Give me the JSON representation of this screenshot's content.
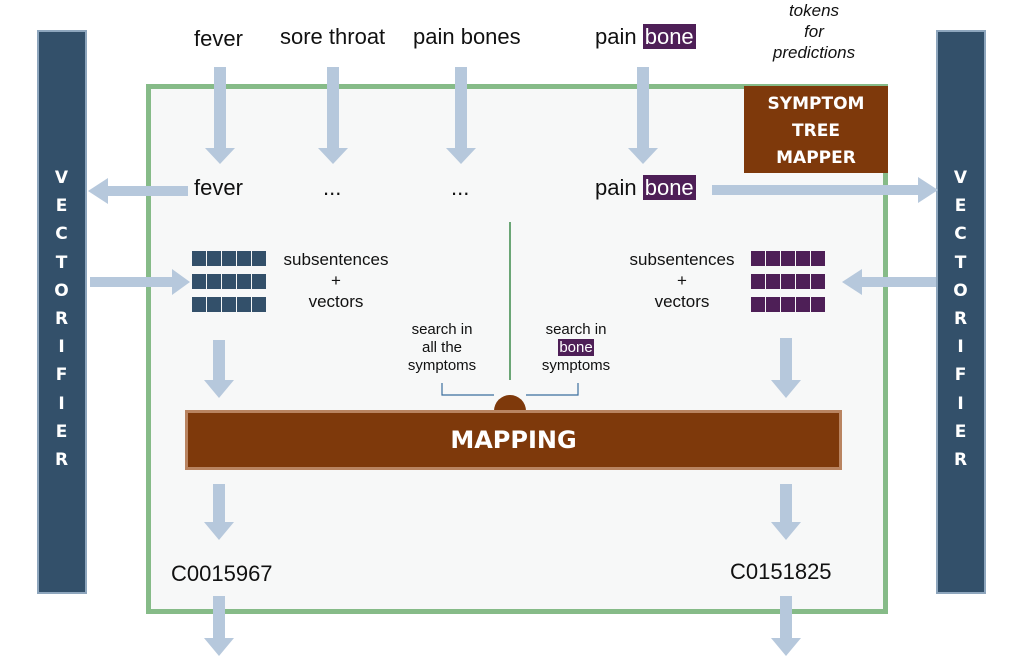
{
  "vectorifier": {
    "letters": [
      "V",
      "E",
      "C",
      "T",
      "O",
      "R",
      "I",
      "F",
      "I",
      "E",
      "R"
    ]
  },
  "top_tokens": {
    "fever": "fever",
    "sore_throat": "sore throat",
    "pain_bones": "pain bones",
    "pain": "pain",
    "bone": "bone"
  },
  "predictions_note": {
    "line1": "tokens",
    "line2": "for",
    "line3": "predictions"
  },
  "symptom_tree_mapper": {
    "line1": "SYMPTOM",
    "line2": "TREE",
    "line3": "MAPPER"
  },
  "inner_tokens": {
    "fever": "fever",
    "ellipsis1": "...",
    "ellipsis2": "...",
    "pain": "pain",
    "bone": "bone"
  },
  "subsentences_left": {
    "line1": "subsentences",
    "line2": "+",
    "line3": "vectors"
  },
  "subsentences_right": {
    "line1": "subsentences",
    "line2": "+",
    "line3": "vectors"
  },
  "search_all": {
    "line1": "search in",
    "line2": "all the",
    "line3": "symptoms"
  },
  "search_bone": {
    "line1": "search in",
    "highlight": "bone",
    "line3": "symptoms"
  },
  "mapping": {
    "label": "MAPPING"
  },
  "codes": {
    "left": "C0015967",
    "right": "C0151825"
  },
  "colors": {
    "vectorifier": "#33506a",
    "mapper_brown": "#7e390b",
    "highlight_purple": "#4e1f57",
    "box_border_green": "#86bb88",
    "arrow_blue": "#b6c8dc"
  }
}
